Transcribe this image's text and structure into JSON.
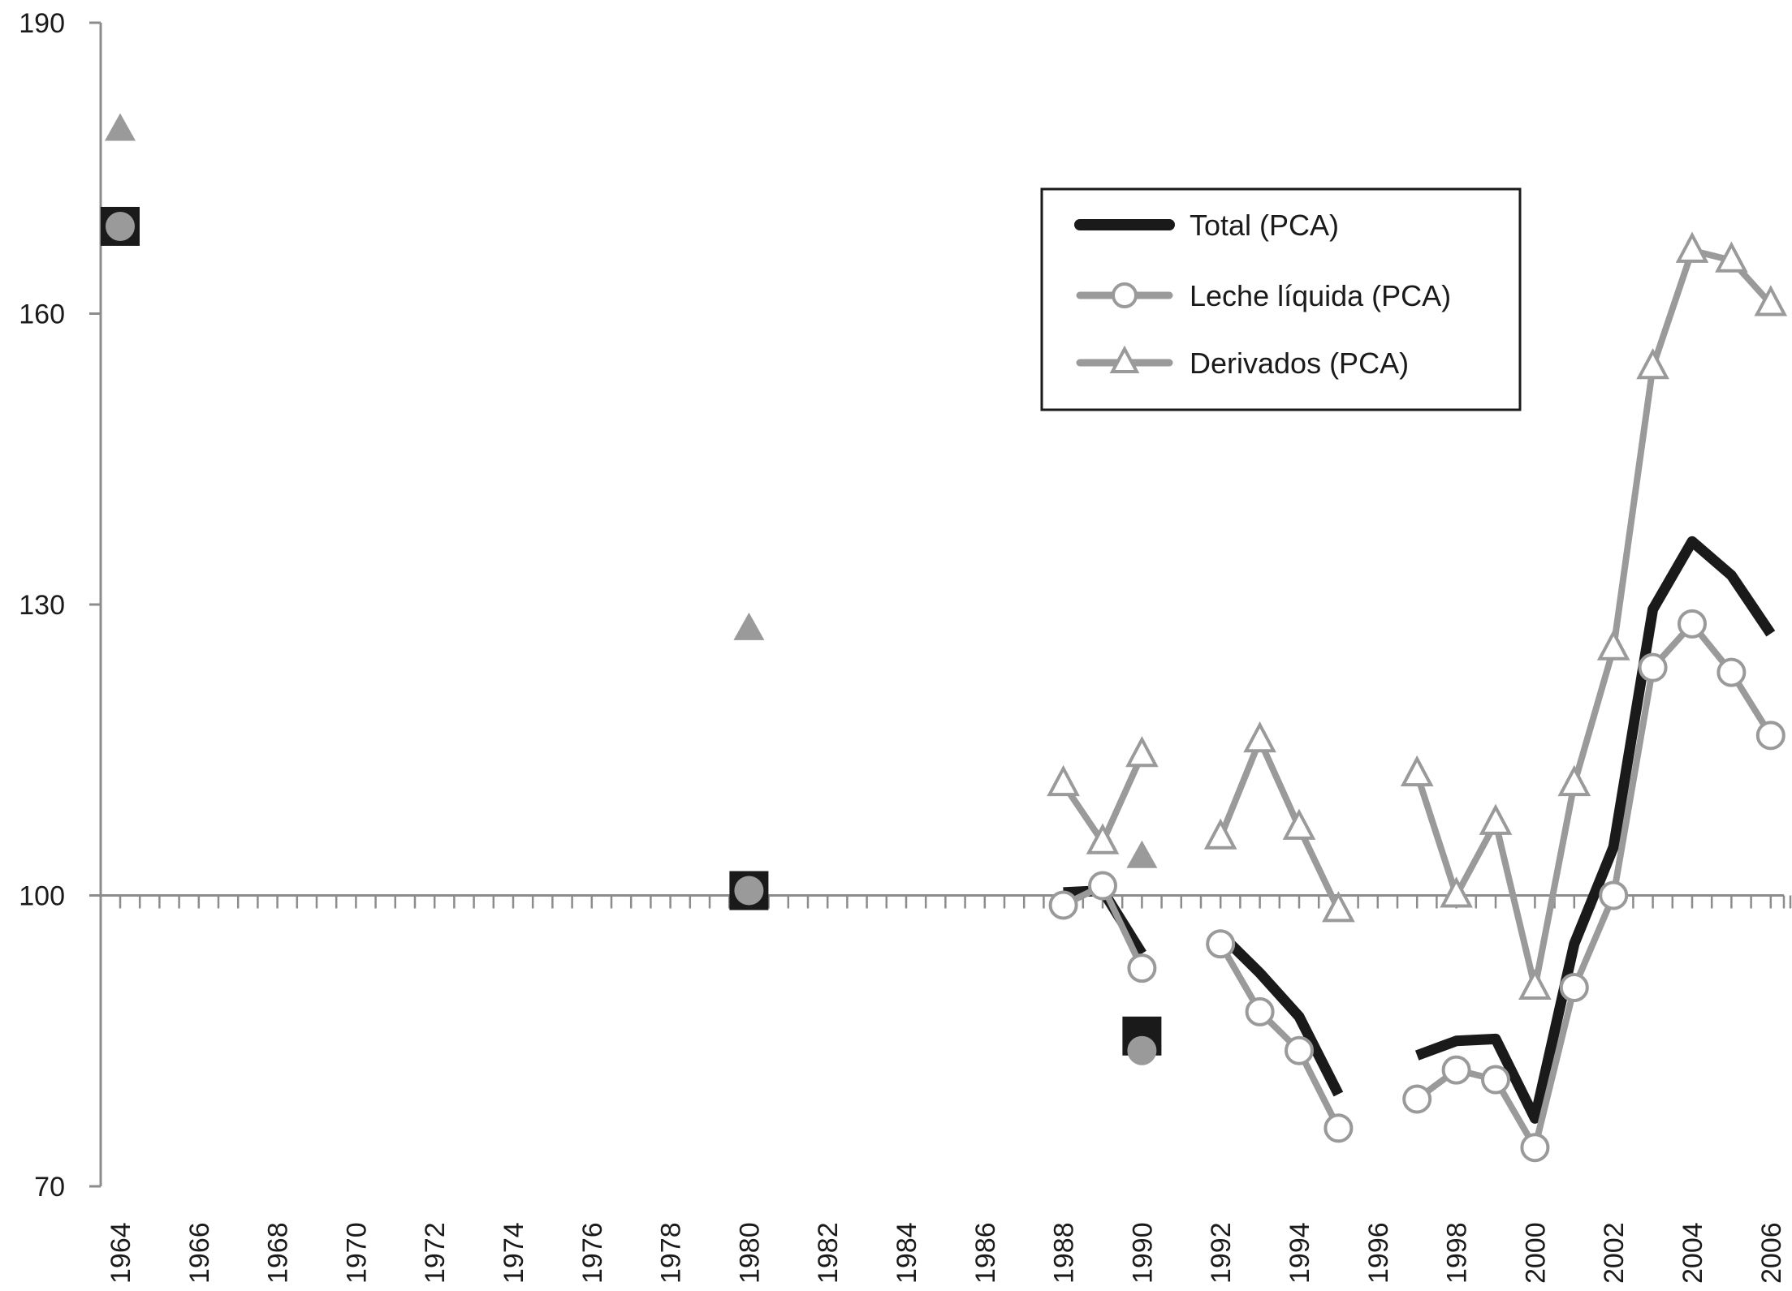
{
  "chart_data": {
    "type": "line",
    "title": "",
    "xlabel": "",
    "ylabel": "",
    "ylim": [
      70,
      190
    ],
    "yticks": [
      70,
      100,
      130,
      160,
      190
    ],
    "xlim": [
      1964,
      2006
    ],
    "xticks": [
      1964,
      1966,
      1968,
      1970,
      1972,
      1974,
      1976,
      1978,
      1980,
      1982,
      1984,
      1986,
      1988,
      1990,
      1992,
      1994,
      1996,
      1998,
      2000,
      2002,
      2004,
      2006
    ],
    "baseline": 100,
    "legend": {
      "position": "top-right"
    },
    "series": [
      {
        "name": "Total (PCA)",
        "color": "#1a1a1a",
        "marker": "none",
        "segments": [
          [
            [
              1988,
              100.3
            ],
            [
              1989,
              100.5
            ],
            [
              1990,
              94
            ]
          ],
          [
            [
              1992,
              96
            ],
            [
              1993,
              92
            ],
            [
              1994,
              87.5
            ],
            [
              1995,
              79.5
            ]
          ],
          [
            [
              1997,
              83.5
            ],
            [
              1998,
              85
            ],
            [
              1999,
              85.2
            ],
            [
              2000,
              77
            ],
            [
              2001,
              95
            ],
            [
              2002,
              105
            ],
            [
              2003,
              129.5
            ],
            [
              2004,
              136.5
            ],
            [
              2005,
              133
            ],
            [
              2006,
              127
            ]
          ]
        ],
        "points": [
          [
            1964,
            169
          ],
          [
            1980,
            100.5
          ],
          [
            1990,
            85.5
          ]
        ],
        "point_marker": "square"
      },
      {
        "name": "Leche líquida (PCA)",
        "color": "#9a9a9a",
        "marker": "circle",
        "segments": [
          [
            [
              1988,
              99
            ],
            [
              1989,
              101
            ],
            [
              1990,
              92.5
            ]
          ],
          [
            [
              1992,
              95
            ],
            [
              1993,
              88
            ],
            [
              1994,
              84
            ],
            [
              1995,
              76
            ]
          ],
          [
            [
              1997,
              79
            ],
            [
              1998,
              82
            ],
            [
              1999,
              81
            ],
            [
              2000,
              74
            ],
            [
              2001,
              90.5
            ],
            [
              2002,
              100
            ],
            [
              2003,
              123.5
            ],
            [
              2004,
              128
            ],
            [
              2005,
              123
            ],
            [
              2006,
              116.5
            ]
          ]
        ],
        "points": [
          [
            1964,
            169
          ],
          [
            1980,
            100.5
          ],
          [
            1990,
            84
          ]
        ],
        "point_marker": "filled-circle"
      },
      {
        "name": "Derivados (PCA)",
        "color": "#9a9a9a",
        "marker": "triangle",
        "segments": [
          [
            [
              1988,
              111.5
            ],
            [
              1989,
              105.5
            ],
            [
              1990,
              114.5
            ]
          ],
          [
            [
              1992,
              106
            ],
            [
              1993,
              116
            ],
            [
              1994,
              107
            ],
            [
              1995,
              98.5
            ]
          ],
          [
            [
              1997,
              112.5
            ],
            [
              1998,
              100
            ],
            [
              1999,
              107.5
            ],
            [
              2000,
              90.5
            ],
            [
              2001,
              111.5
            ],
            [
              2002,
              125.5
            ],
            [
              2003,
              154.5
            ],
            [
              2004,
              166.5
            ],
            [
              2005,
              165.5
            ],
            [
              2006,
              161
            ]
          ]
        ],
        "points": [
          [
            1964,
            179
          ],
          [
            1980,
            127.5
          ],
          [
            1990,
            104
          ]
        ],
        "point_marker": "filled-triangle"
      }
    ]
  }
}
